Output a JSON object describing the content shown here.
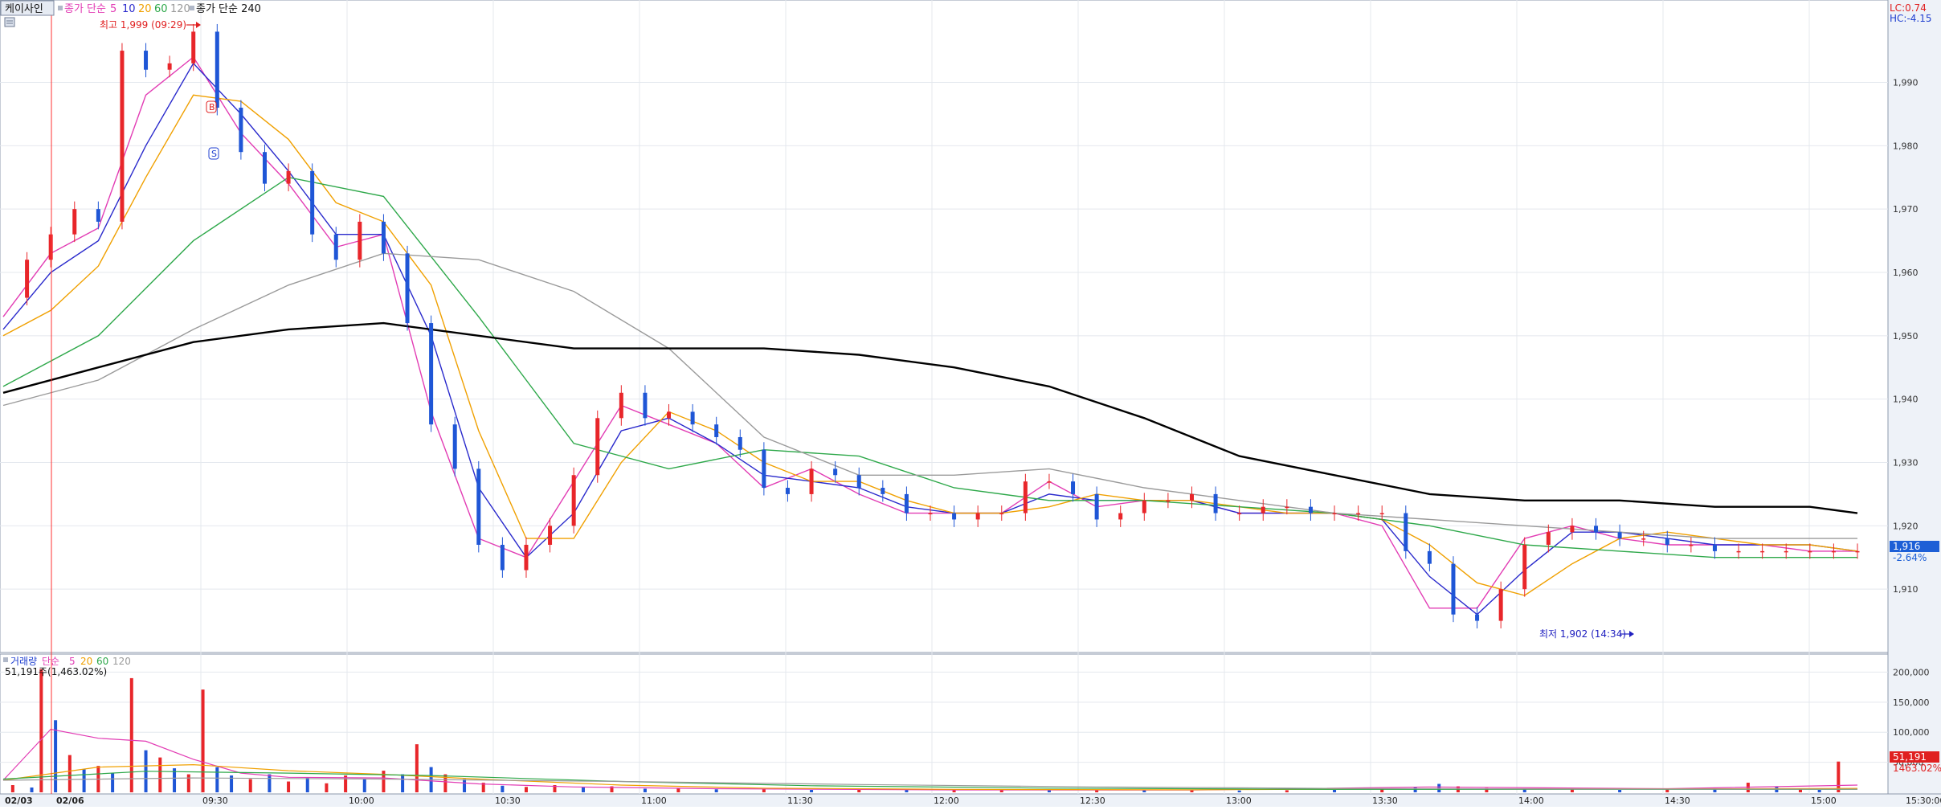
{
  "header": {
    "stock_name": "케이사인",
    "price_ma_label": "종가 단순",
    "price_ma_periods": [
      "5",
      "10",
      "20",
      "60",
      "120"
    ],
    "price_ma_long_label": "종가 단순 240",
    "ma_colors": {
      "ma5": "#e23cb4",
      "ma10": "#2a2acc",
      "ma20": "#f0a000",
      "ma60": "#2ea84a",
      "ma120": "#9a9a9a",
      "ma240": "#000000"
    },
    "indicator_lc": "LC:0.74",
    "indicator_hc": "HC:-4.15"
  },
  "price_panel": {
    "high_annotation": "최고 1,999 (09:29)",
    "low_annotation": "최저 1,902 (14:34)",
    "signal_buy": "B",
    "signal_sell": "S",
    "current_price": "1,916",
    "current_change": "-2.64%"
  },
  "volume_panel": {
    "title": "거래량",
    "ma_label": "단순",
    "ma_periods": [
      "5",
      "20",
      "60",
      "120"
    ],
    "info_value": "51,191주(1,463.02%)",
    "current_volume": "51,191",
    "current_ratio": "1463.02%"
  },
  "chart_data": [
    {
      "type": "candlestick",
      "ylim": [
        1900,
        2003
      ],
      "y_ticks": [
        1910,
        1920,
        1930,
        1940,
        1950,
        1960,
        1970,
        1980,
        1990
      ],
      "y_tick_labels": [
        "1,910",
        "1,920",
        "1,930",
        "1,940",
        "1,950",
        "1,960",
        "1,970",
        "1,980",
        "1,990"
      ],
      "x_ticks": [
        "02/03",
        "02/06",
        "09:30",
        "10:00",
        "10:30",
        "11:00",
        "11:30",
        "12:00",
        "12:30",
        "13:00",
        "13:30",
        "14:00",
        "14:30",
        "15:00",
        "15:30:00"
      ],
      "grid": true,
      "series": [
        {
          "name": "price",
          "t": [
            0,
            5,
            10,
            15,
            20,
            25,
            30,
            35,
            40,
            45,
            50,
            55,
            60,
            65,
            70,
            75,
            80,
            85,
            90,
            95,
            100,
            105,
            110,
            115,
            120,
            125,
            130,
            135,
            140,
            145,
            150,
            155,
            160,
            165,
            170,
            175,
            180,
            185,
            190,
            195,
            200,
            205,
            210,
            215,
            220,
            225,
            230,
            235,
            240,
            245,
            250,
            255,
            260,
            265,
            270,
            275,
            280,
            285,
            290,
            295,
            300,
            305,
            310,
            315,
            320,
            325,
            330,
            335,
            340,
            345,
            350,
            355,
            360,
            365,
            370,
            375,
            380,
            385,
            390
          ],
          "values": [
            1956,
            1962,
            1966,
            1970,
            1968,
            1995,
            1992,
            1993,
            1998,
            1986,
            1979,
            1974,
            1976,
            1966,
            1962,
            1968,
            1963,
            1952,
            1936,
            1929,
            1917,
            1913,
            1917,
            1920,
            1928,
            1937,
            1941,
            1937,
            1938,
            1936,
            1934,
            1932,
            1926,
            1925,
            1929,
            1928,
            1926,
            1925,
            1922,
            1922,
            1921,
            1922,
            1922,
            1927,
            1927,
            1925,
            1921,
            1922,
            1924,
            1924,
            1925,
            1922,
            1922,
            1923,
            1923,
            1922,
            1922,
            1922,
            1922,
            1916,
            1914,
            1906,
            1905,
            1910,
            1917,
            1919,
            1920,
            1919,
            1918,
            1918,
            1917,
            1917,
            1916,
            1916,
            1916,
            1916,
            1916,
            1916,
            1916
          ]
        },
        {
          "name": "5",
          "t": [
            0,
            10,
            20,
            30,
            40,
            50,
            60,
            70,
            80,
            90,
            100,
            110,
            120,
            130,
            140,
            150,
            160,
            170,
            180,
            190,
            200,
            210,
            220,
            230,
            240,
            250,
            260,
            270,
            280,
            290,
            300,
            310,
            320,
            330,
            340,
            350,
            360,
            370,
            380,
            390
          ],
          "values": [
            1953,
            1963,
            1967,
            1988,
            1994,
            1982,
            1974,
            1964,
            1966,
            1938,
            1918,
            1915,
            1927,
            1939,
            1936,
            1933,
            1926,
            1929,
            1925,
            1922,
            1922,
            1922,
            1927,
            1923,
            1924,
            1924,
            1922,
            1922,
            1922,
            1920,
            1907,
            1907,
            1918,
            1920,
            1918,
            1917,
            1917,
            1917,
            1916,
            1916
          ]
        },
        {
          "name": "10",
          "t": [
            0,
            10,
            20,
            30,
            40,
            50,
            60,
            70,
            80,
            90,
            100,
            110,
            120,
            130,
            140,
            150,
            160,
            170,
            180,
            190,
            200,
            210,
            220,
            230,
            240,
            250,
            260,
            270,
            280,
            290,
            300,
            310,
            320,
            330,
            340,
            350,
            360,
            370,
            380,
            390
          ],
          "values": [
            1951,
            1960,
            1965,
            1980,
            1993,
            1985,
            1976,
            1966,
            1966,
            1950,
            1926,
            1915,
            1922,
            1935,
            1937,
            1933,
            1928,
            1927,
            1926,
            1923,
            1922,
            1922,
            1925,
            1924,
            1924,
            1924,
            1922,
            1922,
            1922,
            1921,
            1912,
            1906,
            1913,
            1919,
            1919,
            1918,
            1917,
            1917,
            1917,
            1916
          ]
        },
        {
          "name": "20",
          "t": [
            0,
            10,
            20,
            30,
            40,
            50,
            60,
            70,
            80,
            90,
            100,
            110,
            120,
            130,
            140,
            150,
            160,
            170,
            180,
            190,
            200,
            210,
            220,
            230,
            240,
            250,
            260,
            270,
            280,
            290,
            300,
            310,
            320,
            330,
            340,
            350,
            360,
            370,
            380,
            390
          ],
          "values": [
            1950,
            1954,
            1961,
            1975,
            1988,
            1987,
            1981,
            1971,
            1968,
            1958,
            1935,
            1918,
            1918,
            1930,
            1938,
            1935,
            1930,
            1927,
            1927,
            1924,
            1922,
            1922,
            1923,
            1925,
            1924,
            1924,
            1923,
            1922,
            1922,
            1921,
            1917,
            1911,
            1909,
            1914,
            1918,
            1919,
            1918,
            1917,
            1917,
            1916
          ]
        },
        {
          "name": "60",
          "t": [
            0,
            20,
            40,
            60,
            80,
            100,
            120,
            140,
            160,
            180,
            200,
            220,
            240,
            260,
            280,
            300,
            320,
            340,
            360,
            380,
            390
          ],
          "values": [
            1942,
            1950,
            1965,
            1975,
            1972,
            1953,
            1933,
            1929,
            1932,
            1931,
            1926,
            1924,
            1924,
            1923,
            1922,
            1920,
            1917,
            1916,
            1915,
            1915,
            1915
          ]
        },
        {
          "name": "120",
          "t": [
            0,
            20,
            40,
            60,
            80,
            100,
            120,
            140,
            160,
            180,
            200,
            220,
            240,
            260,
            280,
            300,
            320,
            340,
            360,
            380,
            390
          ],
          "values": [
            1939,
            1943,
            1951,
            1958,
            1963,
            1962,
            1957,
            1948,
            1934,
            1928,
            1928,
            1929,
            1926,
            1924,
            1922,
            1921,
            1920,
            1919,
            1918,
            1918,
            1918
          ]
        },
        {
          "name": "240",
          "t": [
            0,
            20,
            40,
            60,
            80,
            100,
            120,
            140,
            160,
            180,
            200,
            220,
            240,
            260,
            280,
            300,
            320,
            340,
            360,
            380,
            390
          ],
          "values": [
            1941,
            1945,
            1949,
            1951,
            1952,
            1950,
            1948,
            1948,
            1948,
            1947,
            1945,
            1942,
            1937,
            1931,
            1928,
            1925,
            1924,
            1924,
            1923,
            1923,
            1922
          ]
        }
      ]
    },
    {
      "type": "bar",
      "ylim": [
        0,
        230000
      ],
      "y_ticks": [
        50000,
        100000,
        150000,
        200000
      ],
      "y_tick_labels": [
        "50,000",
        "100,000",
        "150,000",
        "200,000"
      ],
      "grid": true,
      "bars": [
        {
          "t": 2,
          "v": 12000,
          "up": true
        },
        {
          "t": 6,
          "v": 8000,
          "up": false
        },
        {
          "t": 8,
          "v": 205000,
          "up": true
        },
        {
          "t": 11,
          "v": 120000,
          "up": false
        },
        {
          "t": 14,
          "v": 62000,
          "up": true
        },
        {
          "t": 17,
          "v": 38000,
          "up": false
        },
        {
          "t": 20,
          "v": 44000,
          "up": true
        },
        {
          "t": 23,
          "v": 32000,
          "up": false
        },
        {
          "t": 27,
          "v": 190000,
          "up": true
        },
        {
          "t": 30,
          "v": 70000,
          "up": false
        },
        {
          "t": 33,
          "v": 58000,
          "up": true
        },
        {
          "t": 36,
          "v": 40000,
          "up": false
        },
        {
          "t": 39,
          "v": 30000,
          "up": true
        },
        {
          "t": 42,
          "v": 171000,
          "up": true
        },
        {
          "t": 45,
          "v": 42000,
          "up": false
        },
        {
          "t": 48,
          "v": 28000,
          "up": false
        },
        {
          "t": 52,
          "v": 22000,
          "up": true
        },
        {
          "t": 56,
          "v": 30000,
          "up": false
        },
        {
          "t": 60,
          "v": 18000,
          "up": true
        },
        {
          "t": 64,
          "v": 24000,
          "up": false
        },
        {
          "t": 68,
          "v": 15000,
          "up": true
        },
        {
          "t": 72,
          "v": 28000,
          "up": true
        },
        {
          "t": 76,
          "v": 22000,
          "up": false
        },
        {
          "t": 80,
          "v": 36000,
          "up": true
        },
        {
          "t": 84,
          "v": 30000,
          "up": false
        },
        {
          "t": 87,
          "v": 80000,
          "up": true
        },
        {
          "t": 90,
          "v": 42000,
          "up": false
        },
        {
          "t": 93,
          "v": 30000,
          "up": true
        },
        {
          "t": 97,
          "v": 22000,
          "up": false
        },
        {
          "t": 101,
          "v": 16000,
          "up": true
        },
        {
          "t": 105,
          "v": 11000,
          "up": false
        },
        {
          "t": 110,
          "v": 9000,
          "up": true
        },
        {
          "t": 116,
          "v": 12000,
          "up": true
        },
        {
          "t": 122,
          "v": 8000,
          "up": false
        },
        {
          "t": 128,
          "v": 10000,
          "up": true
        },
        {
          "t": 135,
          "v": 6000,
          "up": false
        },
        {
          "t": 142,
          "v": 7000,
          "up": true
        },
        {
          "t": 150,
          "v": 5000,
          "up": false
        },
        {
          "t": 160,
          "v": 6000,
          "up": true
        },
        {
          "t": 170,
          "v": 4000,
          "up": false
        },
        {
          "t": 180,
          "v": 5000,
          "up": true
        },
        {
          "t": 190,
          "v": 4000,
          "up": false
        },
        {
          "t": 200,
          "v": 3500,
          "up": true
        },
        {
          "t": 210,
          "v": 5000,
          "up": true
        },
        {
          "t": 220,
          "v": 4000,
          "up": false
        },
        {
          "t": 230,
          "v": 4500,
          "up": true
        },
        {
          "t": 240,
          "v": 3500,
          "up": false
        },
        {
          "t": 250,
          "v": 4000,
          "up": true
        },
        {
          "t": 260,
          "v": 3000,
          "up": false
        },
        {
          "t": 270,
          "v": 3500,
          "up": true
        },
        {
          "t": 280,
          "v": 4000,
          "up": false
        },
        {
          "t": 290,
          "v": 5000,
          "up": true
        },
        {
          "t": 297,
          "v": 9000,
          "up": false
        },
        {
          "t": 302,
          "v": 14000,
          "up": false
        },
        {
          "t": 306,
          "v": 10000,
          "up": true
        },
        {
          "t": 312,
          "v": 7000,
          "up": true
        },
        {
          "t": 320,
          "v": 5000,
          "up": false
        },
        {
          "t": 330,
          "v": 5000,
          "up": true
        },
        {
          "t": 340,
          "v": 4000,
          "up": false
        },
        {
          "t": 350,
          "v": 6000,
          "up": true
        },
        {
          "t": 360,
          "v": 5000,
          "up": false
        },
        {
          "t": 367,
          "v": 16000,
          "up": true
        },
        {
          "t": 373,
          "v": 9000,
          "up": false
        },
        {
          "t": 378,
          "v": 6000,
          "up": true
        },
        {
          "t": 382,
          "v": 4000,
          "up": false
        },
        {
          "t": 386,
          "v": 51191,
          "up": true
        }
      ],
      "series": [
        {
          "name": "5",
          "t": [
            0,
            10,
            20,
            30,
            40,
            50,
            60,
            80,
            100,
            120,
            150,
            200,
            250,
            300,
            350,
            390
          ],
          "values": [
            20000,
            105000,
            90000,
            85000,
            55000,
            32000,
            25000,
            24000,
            14000,
            9000,
            6000,
            4000,
            3800,
            9000,
            6000,
            12000
          ]
        },
        {
          "name": "20",
          "t": [
            0,
            20,
            40,
            60,
            80,
            100,
            130,
            160,
            200,
            250,
            300,
            350,
            390
          ],
          "values": [
            20000,
            42000,
            46000,
            36000,
            30000,
            22000,
            12000,
            7000,
            5000,
            4200,
            6000,
            5500,
            6500
          ]
        },
        {
          "name": "60",
          "t": [
            0,
            30,
            60,
            90,
            130,
            170,
            220,
            280,
            340,
            390
          ],
          "values": [
            22000,
            35000,
            32000,
            28000,
            18000,
            11000,
            7000,
            5000,
            5000,
            5000
          ]
        },
        {
          "name": "120",
          "t": [
            0,
            40,
            80,
            130,
            180,
            230,
            280,
            330,
            390
          ],
          "values": [
            20000,
            24000,
            22000,
            18000,
            13000,
            9000,
            6500,
            5500,
            5200
          ]
        }
      ]
    }
  ]
}
